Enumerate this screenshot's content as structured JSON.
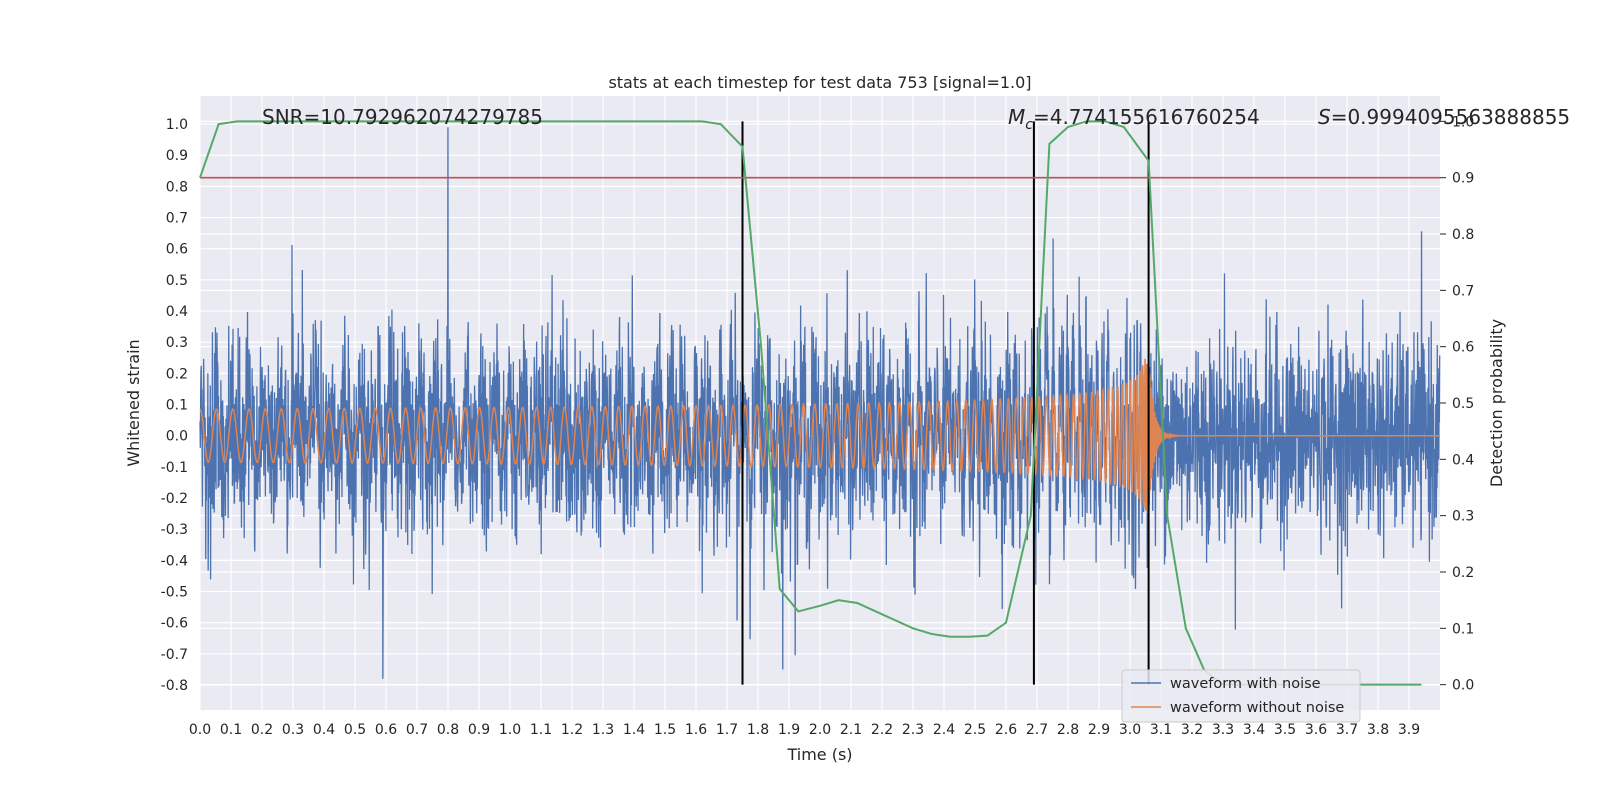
{
  "chart_data": {
    "type": "line",
    "title": "stats at each timestep for test data 753 [signal=1.0]",
    "xlabel": "Time (s)",
    "ylabel": "Whitened strain",
    "y2label": "Detection probability",
    "xlim": [
      0.0,
      4.0
    ],
    "ylim": [
      -0.88,
      1.09
    ],
    "y2lim": [
      -0.045,
      1.045
    ],
    "xticks": [
      "0.0",
      "0.1",
      "0.2",
      "0.3",
      "0.4",
      "0.5",
      "0.6",
      "0.7",
      "0.8",
      "0.9",
      "1.0",
      "1.1",
      "1.2",
      "1.3",
      "1.4",
      "1.5",
      "1.6",
      "1.7",
      "1.8",
      "1.9",
      "2.0",
      "2.1",
      "2.2",
      "2.3",
      "2.4",
      "2.5",
      "2.6",
      "2.7",
      "2.8",
      "2.9",
      "3.0",
      "3.1",
      "3.2",
      "3.3",
      "3.4",
      "3.5",
      "3.6",
      "3.7",
      "3.8",
      "3.9"
    ],
    "yticks": [
      "-0.8",
      "-0.7",
      "-0.6",
      "-0.5",
      "-0.4",
      "-0.3",
      "-0.2",
      "-0.1",
      "0.0",
      "0.1",
      "0.2",
      "0.3",
      "0.4",
      "0.5",
      "0.6",
      "0.7",
      "0.8",
      "0.9",
      "1.0"
    ],
    "y2ticks": [
      "0.0",
      "0.1",
      "0.2",
      "0.3",
      "0.4",
      "0.5",
      "0.6",
      "0.7",
      "0.8",
      "0.9",
      "1.0"
    ],
    "grid": true,
    "legend_position": "bottom-right",
    "annotations": {
      "snr": "SNR=10.792962074279785",
      "mc": "=4.774155616760254",
      "mc_symbol": "M",
      "mc_sub": "c",
      "s": "=0.9994095563888855",
      "s_symbol": "S"
    },
    "series": [
      {
        "name": "waveform with noise",
        "axis": "left",
        "color": "#4c72b0",
        "description_values": "noise band roughly -0.4 to 0.45 with peaks to 0.99 at t=0.8 and -0.78 at t=0.59"
      },
      {
        "name": "waveform without noise",
        "axis": "left",
        "color": "#dd8452",
        "chirp": {
          "amplitude_start": 0.03,
          "amplitude_peak": 0.25,
          "merger_time": 3.06,
          "f_start": 30
        }
      },
      {
        "name": "",
        "axis": "right",
        "color": "#55a868",
        "x": [
          0.0,
          0.06,
          0.12,
          0.18,
          0.24,
          0.3,
          0.36,
          0.42,
          0.48,
          0.54,
          0.6,
          0.66,
          0.72,
          0.78,
          0.84,
          0.9,
          0.96,
          1.02,
          1.08,
          1.14,
          1.2,
          1.26,
          1.32,
          1.38,
          1.44,
          1.5,
          1.56,
          1.62,
          1.68,
          1.75,
          1.81,
          1.87,
          1.93,
          2.0,
          2.06,
          2.12,
          2.18,
          2.24,
          2.3,
          2.36,
          2.42,
          2.48,
          2.54,
          2.6,
          2.68,
          2.74,
          2.8,
          2.86,
          2.92,
          2.98,
          3.06,
          3.12,
          3.18,
          3.24,
          3.3,
          3.36,
          3.42,
          3.48,
          3.54,
          3.6,
          3.66,
          3.72,
          3.78,
          3.84,
          3.9,
          3.94
        ],
        "values": [
          0.9,
          0.995,
          1.0,
          1.0,
          1.0,
          1.0,
          1.0,
          1.0,
          1.0,
          1.0,
          1.0,
          1.0,
          1.0,
          1.0,
          1.0,
          1.0,
          1.0,
          1.0,
          1.0,
          1.0,
          1.0,
          1.0,
          1.0,
          1.0,
          1.0,
          1.0,
          1.0,
          1.0,
          0.995,
          0.955,
          0.6,
          0.17,
          0.13,
          0.14,
          0.15,
          0.145,
          0.13,
          0.115,
          0.1,
          0.09,
          0.085,
          0.085,
          0.087,
          0.11,
          0.3,
          0.96,
          0.99,
          1.0,
          1.0,
          0.99,
          0.93,
          0.3,
          0.1,
          0.025,
          0.0,
          0.0,
          0.0,
          0.0,
          0.0,
          0.0,
          0.0,
          0.0,
          0.0,
          0.0,
          0.0,
          0.0
        ]
      }
    ],
    "threshold": {
      "axis": "right",
      "value": 0.9,
      "color": "#c44e52"
    },
    "vlines": [
      {
        "x": 1.75,
        "y2_from": 0.0,
        "y2_to": 1.0
      },
      {
        "x": 2.69,
        "y2_from": 0.0,
        "y2_to": 1.0
      },
      {
        "x": 3.06,
        "y2_from": 0.0,
        "y2_to": 1.0
      }
    ]
  }
}
